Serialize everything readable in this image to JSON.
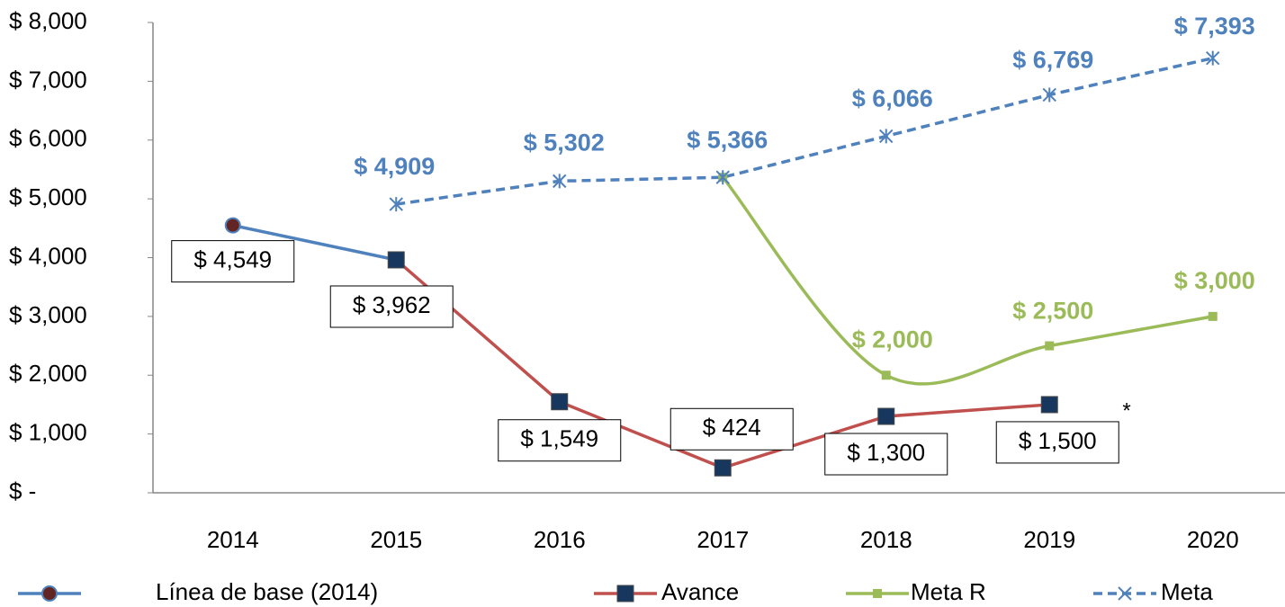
{
  "chart_data": {
    "type": "line",
    "categories": [
      "2014",
      "2015",
      "2016",
      "2017",
      "2018",
      "2019",
      "2020"
    ],
    "ylim": [
      0,
      8000
    ],
    "yticks": [
      {
        "value": 0,
        "label": "$ -"
      },
      {
        "value": 1000,
        "label": "$ 1,000"
      },
      {
        "value": 2000,
        "label": "$ 2,000"
      },
      {
        "value": 3000,
        "label": "$ 3,000"
      },
      {
        "value": 4000,
        "label": "$ 4,000"
      },
      {
        "value": 5000,
        "label": "$ 5,000"
      },
      {
        "value": 6000,
        "label": "$ 6,000"
      },
      {
        "value": 7000,
        "label": "$ 7,000"
      },
      {
        "value": 8000,
        "label": "$ 8,000"
      }
    ],
    "series": [
      {
        "name": "Línea de base (2014)",
        "color": "#4f81bd",
        "values": [
          4549,
          3962,
          null,
          null,
          null,
          null,
          null
        ],
        "value_labels": [
          "$ 4,549",
          null,
          null,
          null,
          null,
          null,
          null
        ]
      },
      {
        "name": "Avance",
        "color": "#c0504d",
        "values": [
          null,
          3962,
          1549,
          424,
          1300,
          1500,
          null
        ],
        "value_labels": [
          null,
          "$ 3,962",
          "$ 1,549",
          "$ 424",
          "$ 1,300",
          "$ 1,500",
          null
        ]
      },
      {
        "name": "Meta R",
        "color": "#9bbb59",
        "smooth": true,
        "values": [
          null,
          null,
          null,
          5366,
          2000,
          2500,
          3000
        ],
        "value_labels": [
          null,
          null,
          null,
          null,
          "$ 2,000",
          "$ 2,500",
          "$ 3,000"
        ]
      },
      {
        "name": "Meta",
        "color": "#4f81bd",
        "dashed": true,
        "values": [
          null,
          4909,
          5302,
          5366,
          6066,
          6769,
          7393
        ],
        "value_labels": [
          null,
          "$ 4,909",
          "$ 5,302",
          "$ 5,366",
          "$ 6,066",
          "$ 6,769",
          "$ 7,393"
        ]
      }
    ],
    "annotations": [
      "*"
    ]
  }
}
